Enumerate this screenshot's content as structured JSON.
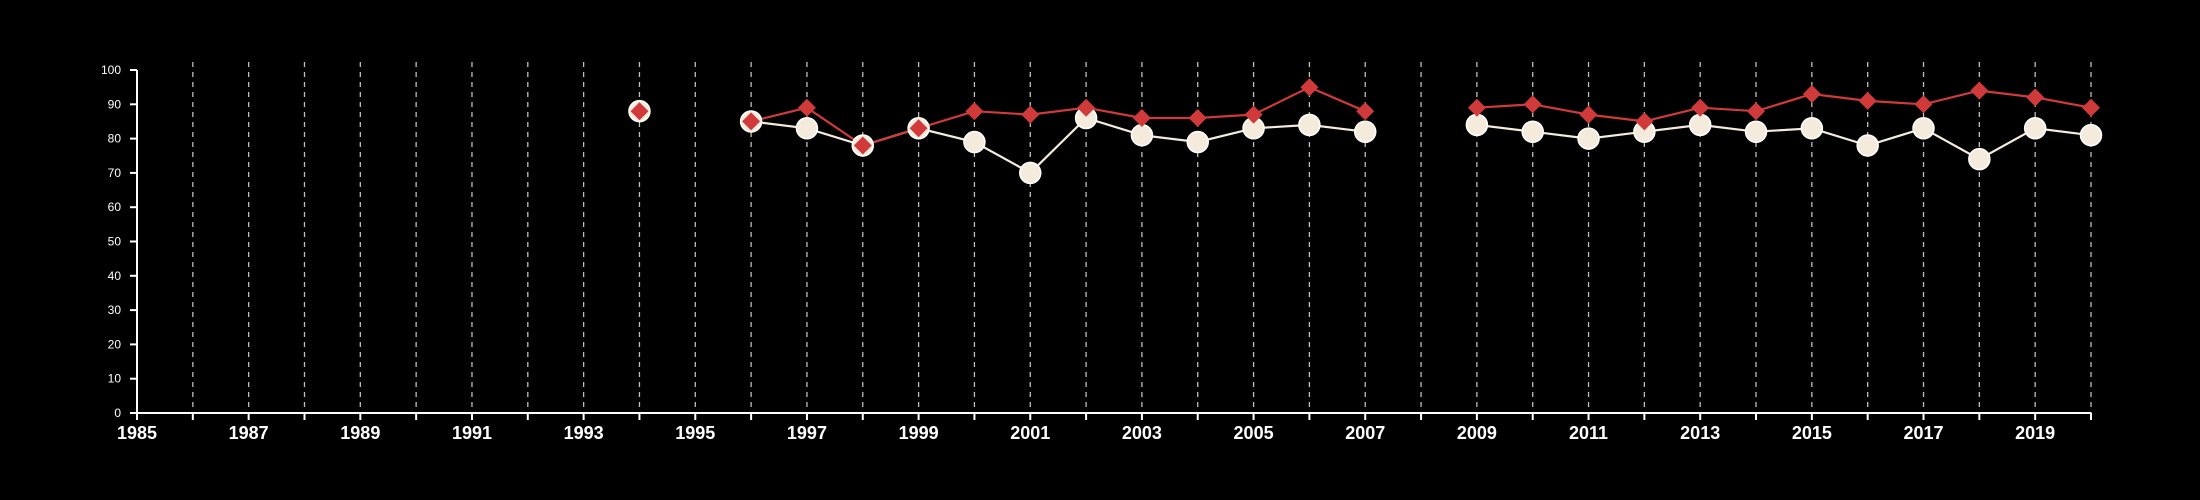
{
  "chart_data": {
    "type": "line",
    "title": "",
    "xlabel": "",
    "ylabel": "",
    "xlim": [
      1985,
      2020
    ],
    "ylim": [
      0,
      100
    ],
    "x_ticks": [
      "1985",
      "1987",
      "1989",
      "1991",
      "1993",
      "1995",
      "1997",
      "1999",
      "2001",
      "2003",
      "2005",
      "2007",
      "2009",
      "2011",
      "2013",
      "2015",
      "2017",
      "2019"
    ],
    "y_ticks": [
      "0",
      "10",
      "20",
      "30",
      "40",
      "50",
      "60",
      "70",
      "80",
      "90",
      "100"
    ],
    "grid": "vertical dashed lines at each year",
    "x": [
      1994,
      1996,
      1997,
      1998,
      1999,
      2000,
      2001,
      2002,
      2003,
      2004,
      2005,
      2006,
      2007,
      2009,
      2010,
      2011,
      2012,
      2013,
      2014,
      2015,
      2016,
      2017,
      2018,
      2019,
      2020
    ],
    "series": [
      {
        "color": "#f5ebdc",
        "marker": "circle",
        "values": [
          88,
          85,
          83,
          78,
          83,
          79,
          70,
          86,
          81,
          79,
          83,
          84,
          82,
          84,
          82,
          80,
          82,
          84,
          82,
          83,
          78,
          83,
          74,
          83,
          81
        ]
      },
      {
        "color": "#d03a3a",
        "marker": "diamond",
        "values": [
          88,
          85,
          89,
          78,
          83,
          88,
          87,
          89,
          86,
          86,
          87,
          95,
          88,
          89,
          90,
          87,
          85,
          89,
          88,
          93,
          91,
          90,
          94,
          92,
          89
        ]
      }
    ]
  }
}
